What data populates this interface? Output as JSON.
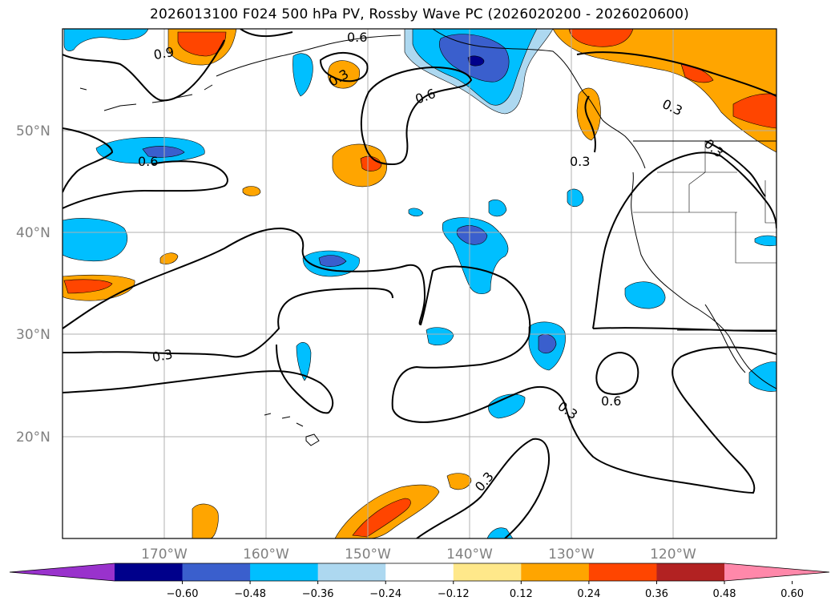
{
  "title": "2026013100 F024 500 hPa PV, Rossby Wave PC (2026020200 - 2026020600)",
  "lat_labels": [
    "50°N",
    "40°N",
    "30°N",
    "20°N"
  ],
  "lon_labels": [
    "170°W",
    "160°W",
    "150°W",
    "140°W",
    "130°W",
    "120°W"
  ],
  "contour_labels": [
    "0.9",
    "0.6",
    "0.3",
    "0.6",
    "0.6",
    "0.3",
    "0.3",
    "0.3",
    "0.3",
    "0.6",
    "0.3",
    "0.3"
  ],
  "colorbar": {
    "ticks": [
      "−0.60",
      "−0.48",
      "−0.36",
      "−0.24",
      "−0.12",
      "0.12",
      "0.24",
      "0.36",
      "0.48",
      "0.60"
    ],
    "colors": [
      "#9932cc",
      "#00008b",
      "#3a5fcd",
      "#00bfff",
      "#add8f0",
      "#ffffff",
      "#ffe88a",
      "#ffa500",
      "#ff4500",
      "#b22222",
      "#ff88aa"
    ]
  },
  "colors": {
    "strong_neg": "#00008b",
    "mid_neg": "#3a5fcd",
    "neg": "#00bfff",
    "weak_neg": "#add8f0",
    "weak_pos": "#ffe88a",
    "pos": "#ffa500",
    "mid_pos": "#ff4500",
    "contour": "#000000",
    "grid": "#b0b0b0",
    "axis_label": "#808080"
  }
}
